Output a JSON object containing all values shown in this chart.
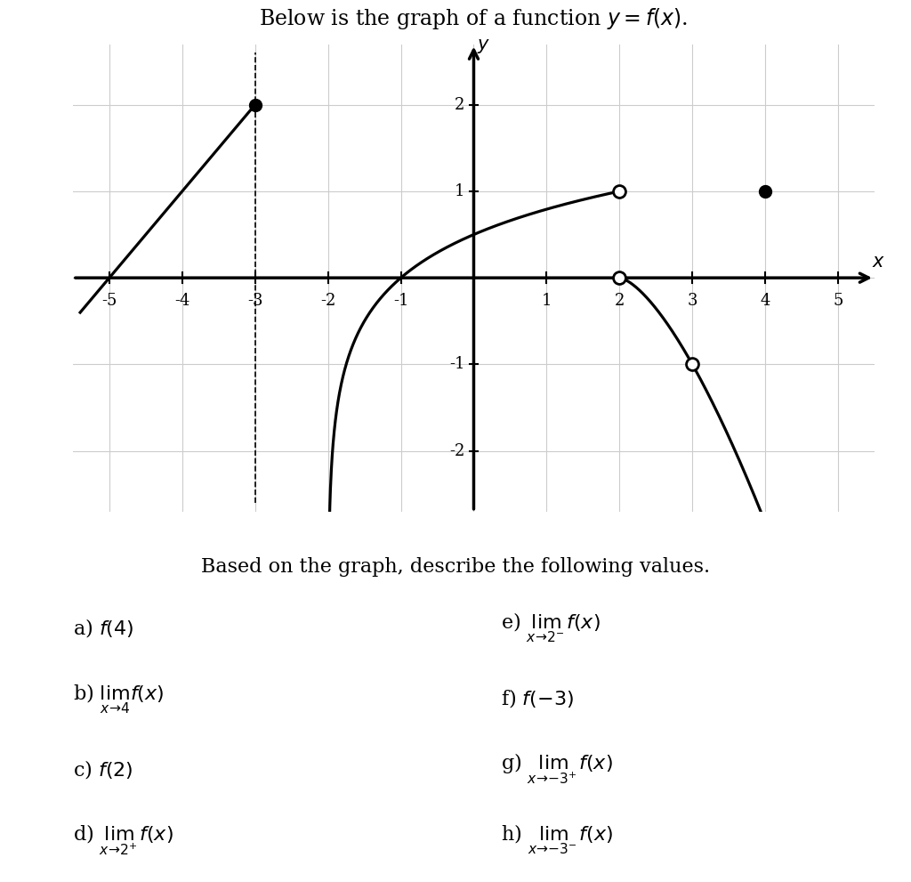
{
  "title": "Below is the graph of a function $y = f(x)$.",
  "subtitle": "Based on the graph, describe the following values.",
  "xlim": [
    -5.5,
    5.5
  ],
  "ylim": [
    -2.7,
    2.7
  ],
  "grid_color": "#cccccc",
  "background_color": "#ffffff",
  "questions_left": [
    "a) $f(4)$",
    "b) $\\lim_{x\\to4} f(x)$",
    "c) $f(2)$",
    "d) $\\lim_{x\\to2^+} f(x)$"
  ],
  "questions_right": [
    "e) $\\lim_{x\\to2^-} f(x)$",
    "f) $f(-3)$",
    "g) $\\lim_{x\\to-3^+} f(x)$",
    "h) $\\lim_{x\\to-3^-} f(x)$"
  ]
}
